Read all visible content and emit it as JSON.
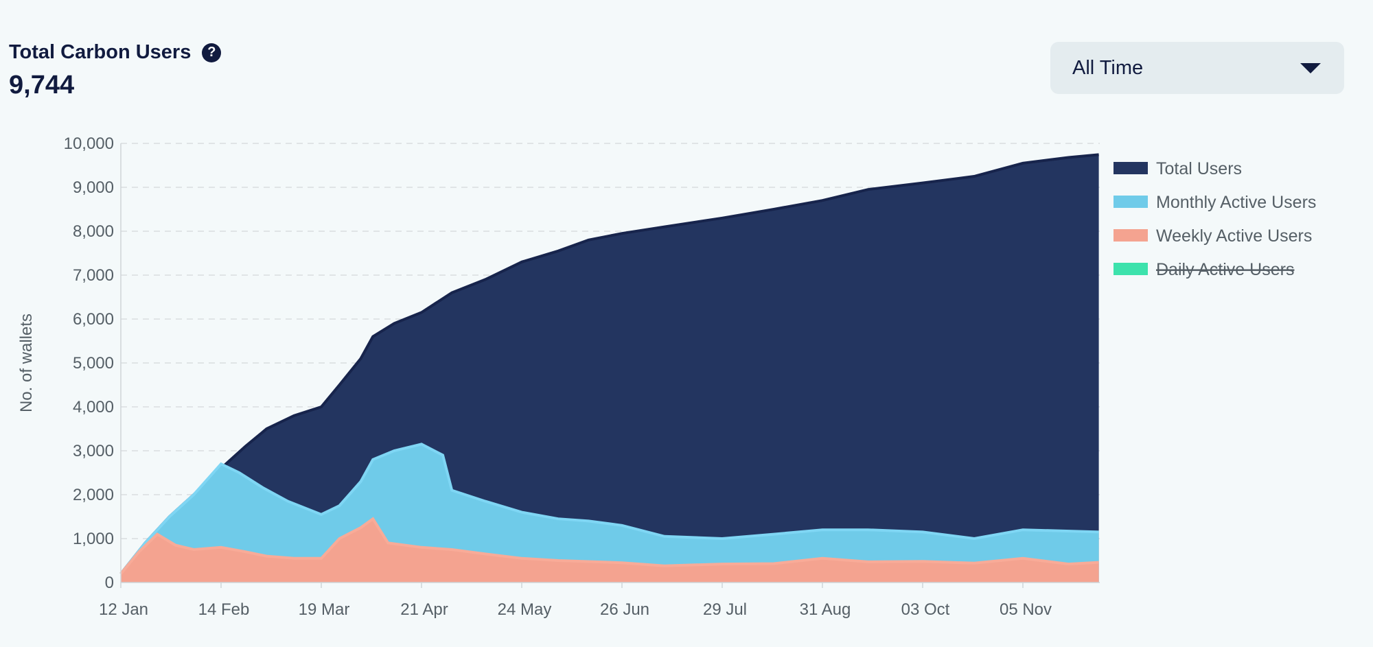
{
  "header": {
    "title": "Total Carbon Users",
    "help_icon": "question-circle-icon",
    "total": "9,744"
  },
  "filter": {
    "selected": "All Time",
    "icon": "caret-down-icon"
  },
  "chart_data": {
    "type": "area",
    "ylabel": "No. of wallets",
    "ylim": [
      0,
      10000
    ],
    "yticks": [
      "0",
      "1,000",
      "2,000",
      "3,000",
      "4,000",
      "5,000",
      "6,000",
      "7,000",
      "8,000",
      "9,000",
      "10,000"
    ],
    "xticks": [
      "12 Jan",
      "14 Feb",
      "19 Mar",
      "21 Apr",
      "24 May",
      "26 Jun",
      "29 Jul",
      "31 Aug",
      "03 Oct",
      "05 Nov"
    ],
    "x_start": "2022-01-12",
    "grid": true,
    "legend_position": "right",
    "series": [
      {
        "name": "Total Users",
        "color": "#233560",
        "visible": true,
        "points": [
          [
            "2022-01-12",
            200
          ],
          [
            "2022-01-20",
            900
          ],
          [
            "2022-01-28",
            1500
          ],
          [
            "2022-02-05",
            2000
          ],
          [
            "2022-02-14",
            2600
          ],
          [
            "2022-02-22",
            3100
          ],
          [
            "2022-03-01",
            3500
          ],
          [
            "2022-03-10",
            3800
          ],
          [
            "2022-03-19",
            4000
          ],
          [
            "2022-03-25",
            4500
          ],
          [
            "2022-04-01",
            5100
          ],
          [
            "2022-04-05",
            5600
          ],
          [
            "2022-04-12",
            5900
          ],
          [
            "2022-04-21",
            6150
          ],
          [
            "2022-05-01",
            6600
          ],
          [
            "2022-05-12",
            6900
          ],
          [
            "2022-05-24",
            7300
          ],
          [
            "2022-06-05",
            7550
          ],
          [
            "2022-06-15",
            7800
          ],
          [
            "2022-06-26",
            7950
          ],
          [
            "2022-07-10",
            8100
          ],
          [
            "2022-07-29",
            8300
          ],
          [
            "2022-08-15",
            8500
          ],
          [
            "2022-08-31",
            8700
          ],
          [
            "2022-09-15",
            8950
          ],
          [
            "2022-10-03",
            9100
          ],
          [
            "2022-10-20",
            9250
          ],
          [
            "2022-11-05",
            9550
          ],
          [
            "2022-11-20",
            9680
          ],
          [
            "2022-11-30",
            9744
          ]
        ]
      },
      {
        "name": "Monthly Active Users",
        "color": "#6fcbe9",
        "visible": true,
        "points": [
          [
            "2022-01-12",
            200
          ],
          [
            "2022-01-20",
            900
          ],
          [
            "2022-01-28",
            1500
          ],
          [
            "2022-02-05",
            2000
          ],
          [
            "2022-02-14",
            2700
          ],
          [
            "2022-02-20",
            2500
          ],
          [
            "2022-02-28",
            2150
          ],
          [
            "2022-03-08",
            1850
          ],
          [
            "2022-03-19",
            1550
          ],
          [
            "2022-03-25",
            1750
          ],
          [
            "2022-04-01",
            2300
          ],
          [
            "2022-04-05",
            2800
          ],
          [
            "2022-04-12",
            3000
          ],
          [
            "2022-04-21",
            3150
          ],
          [
            "2022-04-28",
            2900
          ],
          [
            "2022-05-01",
            2100
          ],
          [
            "2022-05-12",
            1850
          ],
          [
            "2022-05-24",
            1600
          ],
          [
            "2022-06-05",
            1450
          ],
          [
            "2022-06-15",
            1400
          ],
          [
            "2022-06-26",
            1300
          ],
          [
            "2022-07-10",
            1050
          ],
          [
            "2022-07-29",
            1000
          ],
          [
            "2022-08-15",
            1100
          ],
          [
            "2022-08-31",
            1200
          ],
          [
            "2022-09-15",
            1200
          ],
          [
            "2022-10-03",
            1150
          ],
          [
            "2022-10-20",
            1000
          ],
          [
            "2022-11-05",
            1200
          ],
          [
            "2022-11-30",
            1150
          ]
        ]
      },
      {
        "name": "Weekly Active Users",
        "color": "#f4a390",
        "visible": true,
        "points": [
          [
            "2022-01-12",
            200
          ],
          [
            "2022-01-18",
            700
          ],
          [
            "2022-01-24",
            1100
          ],
          [
            "2022-01-30",
            850
          ],
          [
            "2022-02-05",
            750
          ],
          [
            "2022-02-14",
            800
          ],
          [
            "2022-02-22",
            700
          ],
          [
            "2022-03-01",
            600
          ],
          [
            "2022-03-10",
            550
          ],
          [
            "2022-03-19",
            550
          ],
          [
            "2022-03-25",
            1000
          ],
          [
            "2022-04-01",
            1250
          ],
          [
            "2022-04-05",
            1450
          ],
          [
            "2022-04-10",
            900
          ],
          [
            "2022-04-21",
            800
          ],
          [
            "2022-05-01",
            750
          ],
          [
            "2022-05-12",
            650
          ],
          [
            "2022-05-24",
            550
          ],
          [
            "2022-06-05",
            500
          ],
          [
            "2022-06-26",
            450
          ],
          [
            "2022-07-10",
            380
          ],
          [
            "2022-07-29",
            420
          ],
          [
            "2022-08-15",
            430
          ],
          [
            "2022-08-31",
            550
          ],
          [
            "2022-09-15",
            470
          ],
          [
            "2022-10-03",
            480
          ],
          [
            "2022-10-20",
            440
          ],
          [
            "2022-11-05",
            550
          ],
          [
            "2022-11-20",
            420
          ],
          [
            "2022-11-30",
            460
          ]
        ]
      },
      {
        "name": "Daily Active Users",
        "color": "#3de2ac",
        "visible": false,
        "points": []
      }
    ]
  }
}
